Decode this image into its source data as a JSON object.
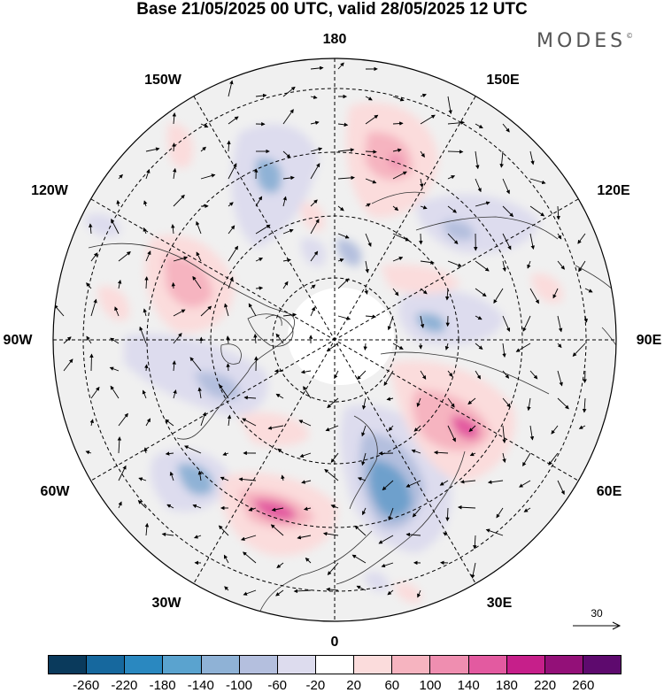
{
  "title": "Base 21/05/2025 00 UTC, valid 28/05/2025 12 UTC",
  "brand": {
    "name": "MODES",
    "mark": "©"
  },
  "longitude_labels": {
    "lon_180": "180",
    "lon_150w": "150W",
    "lon_150e": "150E",
    "lon_120w": "120W",
    "lon_120e": "120E",
    "lon_90w": "90W",
    "lon_90e": "90E",
    "lon_60w": "60W",
    "lon_60e": "60E",
    "lon_30w": "30W",
    "lon_30e": "30E",
    "lon_0": "0"
  },
  "reference_vector": {
    "label": "30"
  },
  "colorbar": {
    "colors": [
      "#0a3a5c",
      "#16689e",
      "#2a88c0",
      "#5aa3cf",
      "#8fb2d6",
      "#b4bfde",
      "#dddcee",
      "#ffffff",
      "#fbdcdc",
      "#f6b4c0",
      "#ef8eb0",
      "#e35aa0",
      "#c61f8a",
      "#931078",
      "#5e0a6e"
    ],
    "tick_labels": [
      "-260",
      "-220",
      "-180",
      "-140",
      "-100",
      "-60",
      "-20",
      "20",
      "60",
      "100",
      "140",
      "180",
      "220",
      "260"
    ]
  }
}
